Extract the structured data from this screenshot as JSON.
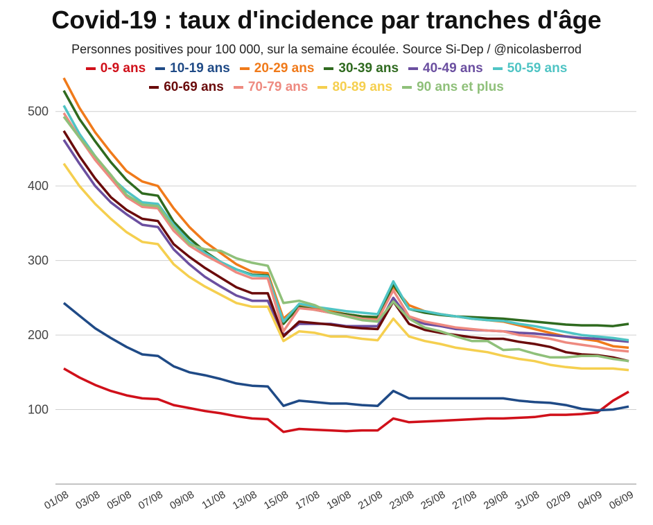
{
  "chart_data": {
    "type": "line",
    "title": "Covid-19 : taux d'incidence par tranches d'âge",
    "subtitle": "Personnes positives pour 100 000, sur la semaine écoulée. Source Si-Dep / @nicolasberrod",
    "categories": [
      "01/08",
      null,
      "03/08",
      null,
      "05/08",
      null,
      "07/08",
      null,
      "09/08",
      null,
      "11/08",
      null,
      "13/08",
      null,
      "15/08",
      null,
      "17/08",
      null,
      "19/08",
      null,
      "21/08",
      null,
      "23/08",
      null,
      "25/08",
      null,
      "27/08",
      null,
      "29/08",
      null,
      "31/08",
      null,
      "02/09",
      null,
      "04/09",
      null,
      "06/09"
    ],
    "ylim": [
      0,
      550
    ],
    "yticks": [
      100,
      200,
      300,
      400,
      500
    ],
    "grid": true,
    "series": [
      {
        "name": "0-9 ans",
        "color": "#d0101a",
        "values": [
          155,
          143,
          133,
          125,
          119,
          115,
          114,
          106,
          102,
          98,
          95,
          91,
          88,
          87,
          70,
          74,
          73,
          72,
          71,
          72,
          72,
          88,
          83,
          84,
          85,
          86,
          87,
          88,
          88,
          89,
          90,
          93,
          93,
          94,
          96,
          112,
          124
        ]
      },
      {
        "name": "10-19 ans",
        "color": "#1f4a86",
        "values": [
          243,
          226,
          209,
          196,
          184,
          174,
          172,
          158,
          150,
          146,
          141,
          135,
          132,
          131,
          105,
          112,
          110,
          108,
          108,
          106,
          105,
          125,
          115,
          115,
          115,
          115,
          115,
          115,
          115,
          112,
          110,
          109,
          106,
          101,
          99,
          100,
          104
        ]
      },
      {
        "name": "20-29 ans",
        "color": "#f07a1a",
        "values": [
          545,
          505,
          472,
          445,
          420,
          406,
          400,
          370,
          345,
          325,
          310,
          295,
          285,
          283,
          222,
          240,
          235,
          232,
          228,
          225,
          222,
          265,
          240,
          232,
          228,
          225,
          222,
          220,
          218,
          213,
          208,
          203,
          198,
          195,
          192,
          185,
          183
        ]
      },
      {
        "name": "30-39 ans",
        "color": "#2f6a1f",
        "values": [
          528,
          490,
          460,
          432,
          408,
          390,
          387,
          352,
          330,
          312,
          298,
          288,
          281,
          280,
          215,
          238,
          234,
          230,
          228,
          225,
          224,
          268,
          235,
          230,
          227,
          225,
          224,
          223,
          222,
          220,
          218,
          216,
          214,
          213,
          213,
          212,
          215
        ]
      },
      {
        "name": "40-49 ans",
        "color": "#6b4fa0",
        "values": [
          462,
          430,
          400,
          378,
          362,
          348,
          345,
          315,
          295,
          278,
          265,
          253,
          246,
          246,
          200,
          215,
          215,
          215,
          212,
          212,
          212,
          250,
          222,
          215,
          212,
          208,
          207,
          206,
          205,
          203,
          202,
          200,
          198,
          196,
          195,
          193,
          191
        ]
      },
      {
        "name": "50-59 ans",
        "color": "#4fc4c4",
        "values": [
          508,
          470,
          440,
          412,
          393,
          378,
          376,
          348,
          325,
          310,
          298,
          288,
          280,
          279,
          218,
          242,
          238,
          235,
          232,
          230,
          228,
          272,
          235,
          232,
          228,
          225,
          222,
          220,
          219,
          215,
          212,
          208,
          204,
          200,
          198,
          196,
          193
        ]
      },
      {
        "name": "60-69 ans",
        "color": "#6a0b0b",
        "values": [
          474,
          440,
          410,
          385,
          368,
          356,
          353,
          322,
          305,
          290,
          277,
          264,
          256,
          256,
          198,
          218,
          216,
          214,
          211,
          209,
          208,
          245,
          215,
          207,
          203,
          200,
          197,
          195,
          195,
          191,
          188,
          184,
          177,
          174,
          173,
          170,
          165
        ]
      },
      {
        "name": "70-79 ans",
        "color": "#ee8a80",
        "values": [
          498,
          465,
          435,
          410,
          385,
          372,
          370,
          340,
          320,
          307,
          296,
          284,
          276,
          276,
          205,
          236,
          234,
          230,
          226,
          222,
          220,
          260,
          225,
          218,
          214,
          210,
          208,
          206,
          205,
          200,
          198,
          195,
          190,
          187,
          184,
          180,
          178
        ]
      },
      {
        "name": "80-89 ans",
        "color": "#f5cf4f",
        "values": [
          430,
          400,
          376,
          356,
          338,
          325,
          322,
          295,
          278,
          265,
          254,
          243,
          238,
          238,
          192,
          205,
          203,
          198,
          198,
          195,
          193,
          222,
          198,
          192,
          188,
          183,
          180,
          177,
          172,
          168,
          165,
          160,
          157,
          155,
          155,
          155,
          153
        ]
      },
      {
        "name": "90 ans et plus",
        "color": "#8fc07a",
        "values": [
          493,
          465,
          440,
          415,
          388,
          375,
          373,
          345,
          322,
          315,
          313,
          303,
          297,
          293,
          243,
          246,
          240,
          230,
          225,
          220,
          218,
          245,
          222,
          210,
          205,
          198,
          192,
          192,
          180,
          181,
          175,
          170,
          170,
          172,
          172,
          168,
          165
        ]
      }
    ]
  }
}
